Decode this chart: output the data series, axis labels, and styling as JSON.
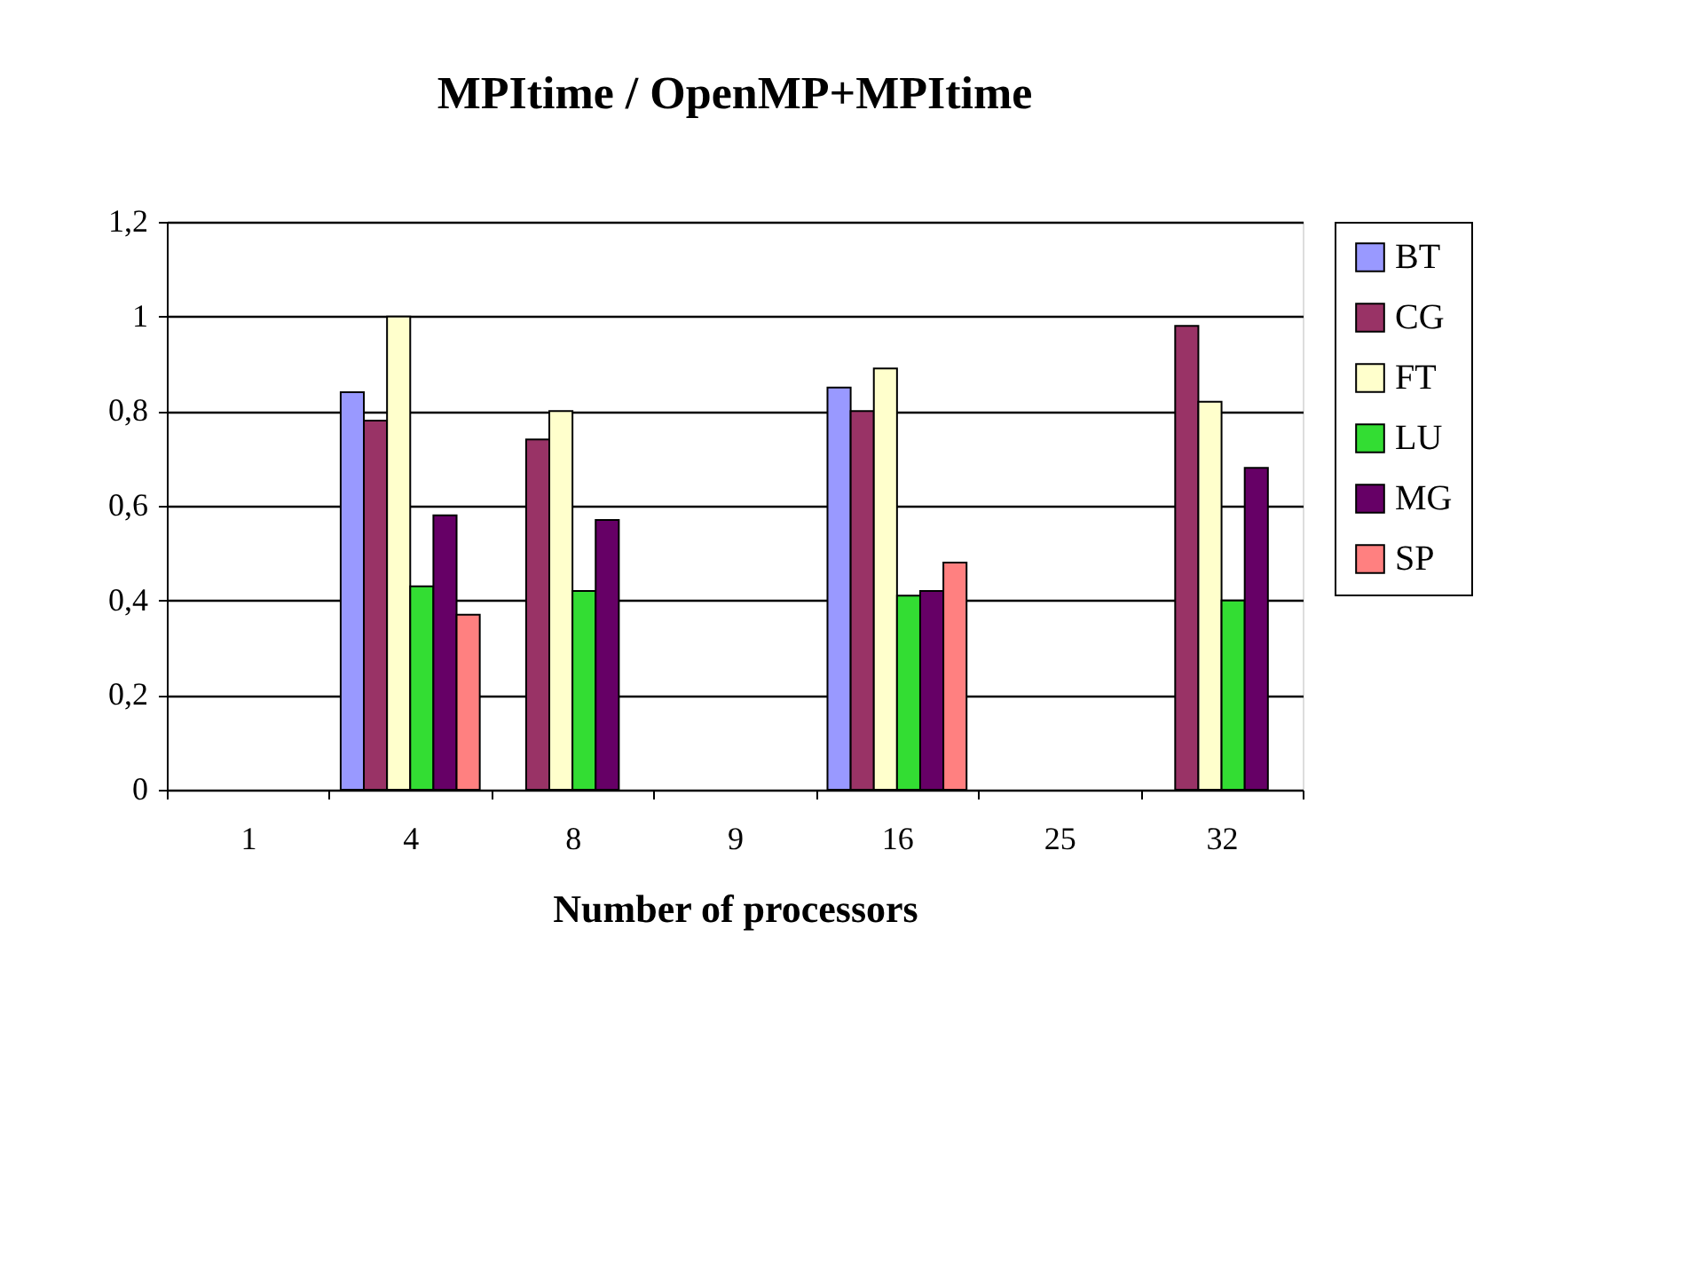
{
  "chart_data": {
    "type": "bar",
    "title": "MPItime / OpenMP+MPItime",
    "xlabel": "Number of processors",
    "categories": [
      "1",
      "4",
      "8",
      "9",
      "16",
      "25",
      "32"
    ],
    "series": [
      {
        "name": "BT",
        "color": "#9999ff",
        "values": [
          null,
          0.84,
          null,
          null,
          0.85,
          null,
          null
        ]
      },
      {
        "name": "CG",
        "color": "#993366",
        "values": [
          null,
          0.78,
          0.74,
          null,
          0.8,
          null,
          0.98
        ]
      },
      {
        "name": "FT",
        "color": "#ffffcc",
        "values": [
          null,
          1.0,
          0.8,
          null,
          0.89,
          null,
          0.82
        ]
      },
      {
        "name": "LU",
        "color": "#33dd33",
        "values": [
          null,
          0.43,
          0.42,
          null,
          0.41,
          null,
          0.4
        ]
      },
      {
        "name": "MG",
        "color": "#660066",
        "values": [
          null,
          0.58,
          0.57,
          null,
          0.42,
          null,
          0.68
        ]
      },
      {
        "name": "SP",
        "color": "#ff8080",
        "values": [
          null,
          0.37,
          null,
          null,
          0.48,
          null,
          null
        ]
      }
    ],
    "ylim": [
      0,
      1.2
    ],
    "yticks": [
      0,
      {
        "value": 0.2,
        "label": "0,2"
      },
      {
        "value": 0.4,
        "label": "0,4"
      },
      {
        "value": 0.6,
        "label": "0,6"
      },
      {
        "value": 0.8,
        "label": "0,8"
      },
      1,
      {
        "value": 1.2,
        "label": "1,2"
      }
    ],
    "grid": "y",
    "legend": "right"
  }
}
